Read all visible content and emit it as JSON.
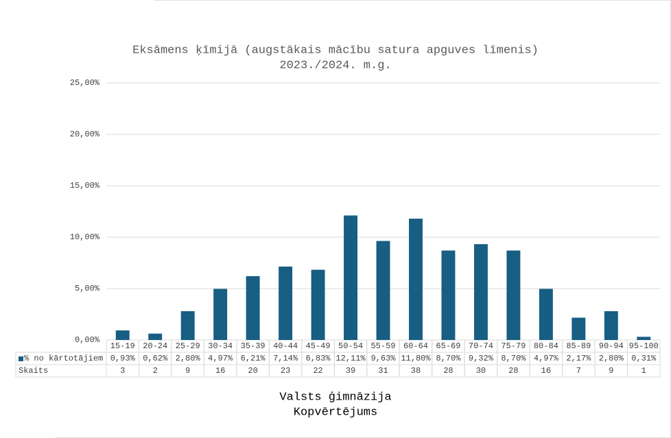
{
  "chart_data": {
    "type": "bar",
    "title": "Eksāmens ķīmijā (augstākais mācību satura apguves līmenis)",
    "subtitle": "2023./2024. m.g.",
    "footer": [
      "Valsts ģimnāzija",
      "Kopvērtējums"
    ],
    "categories": [
      "15-19",
      "20-24",
      "25-29",
      "30-34",
      "35-39",
      "40-44",
      "45-49",
      "50-54",
      "55-59",
      "60-64",
      "65-69",
      "70-74",
      "75-79",
      "80-84",
      "85-89",
      "90-94",
      "95-100"
    ],
    "series": [
      {
        "name": "% no kārtotājiem",
        "color": "#175e82",
        "values": [
          0.93,
          0.62,
          2.8,
          4.97,
          6.21,
          7.14,
          6.83,
          12.11,
          9.63,
          11.8,
          8.7,
          9.32,
          8.7,
          4.97,
          2.17,
          2.8,
          0.31
        ],
        "value_labels": [
          "0,93%",
          "0,62%",
          "2,80%",
          "4,97%",
          "6,21%",
          "7,14%",
          "6,83%",
          "12,11%",
          "9,63%",
          "11,80%",
          "8,70%",
          "9,32%",
          "8,70%",
          "4,97%",
          "2,17%",
          "2,80%",
          "0,31%"
        ]
      }
    ],
    "counts": {
      "name": "Skaits",
      "values": [
        3,
        2,
        9,
        16,
        20,
        23,
        22,
        39,
        31,
        38,
        28,
        30,
        28,
        16,
        7,
        9,
        1
      ]
    },
    "ylim": [
      0,
      25
    ],
    "yticks": [
      {
        "value": 0,
        "label": "0,00%"
      },
      {
        "value": 5,
        "label": "5,00%"
      },
      {
        "value": 10,
        "label": "10,00%"
      },
      {
        "value": 15,
        "label": "15,00%"
      },
      {
        "value": 20,
        "label": "20,00%"
      },
      {
        "value": 25,
        "label": "25,00%"
      }
    ],
    "grid": true
  }
}
